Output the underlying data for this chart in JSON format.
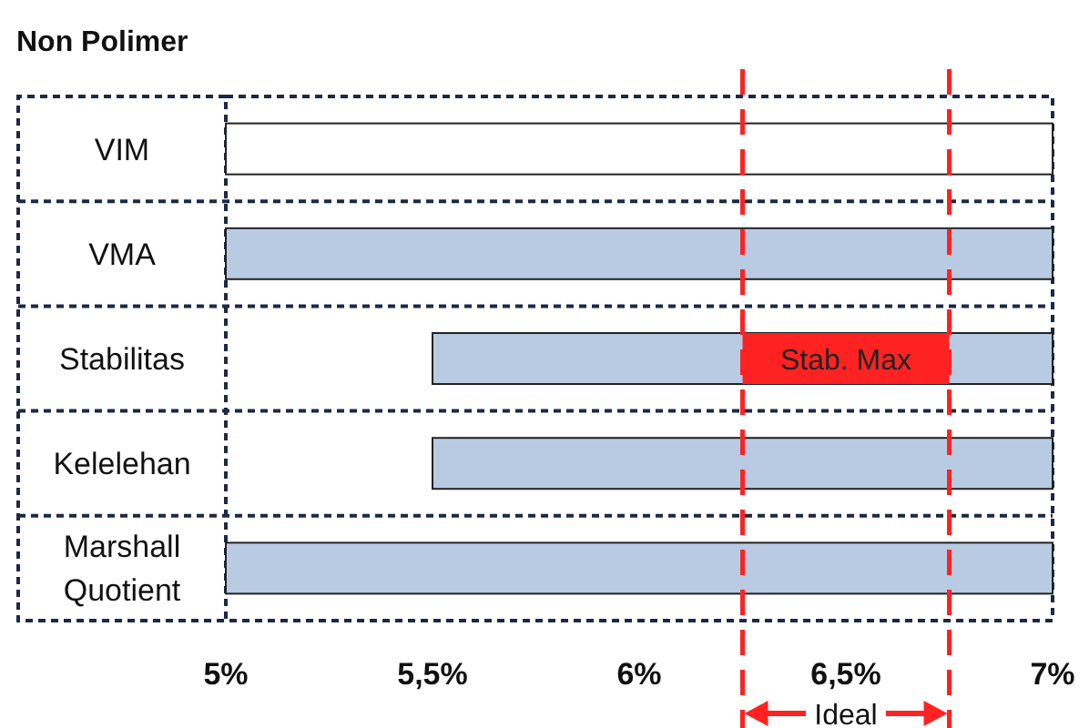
{
  "chart_data": {
    "type": "bar",
    "orientation": "horizontal",
    "title": "Non Polimer",
    "categories": [
      "VIM",
      "VMA",
      "Stabilitas",
      "Kelelehan",
      "Marshall\nQuotient"
    ],
    "xlim": [
      5,
      7
    ],
    "xticks": [
      {
        "value": 5,
        "label": "5%"
      },
      {
        "value": 5.5,
        "label": "5,5%"
      },
      {
        "value": 6,
        "label": "6%"
      },
      {
        "value": 6.5,
        "label": "6,5%"
      },
      {
        "value": 7,
        "label": "7%"
      }
    ],
    "series": [
      {
        "base": [
          5,
          5,
          5.5,
          5.5,
          5
        ],
        "values": [
          2,
          2,
          1.5,
          1.5,
          2
        ],
        "colors": [
          "#ffffff",
          "#b9cbe2",
          "#b9cbe2",
          "#b9cbe2",
          "#b9cbe2"
        ]
      },
      {
        "name": "Stab. Max",
        "color": "#ff2222",
        "base": [
          null,
          null,
          6.25,
          null,
          null
        ],
        "values": [
          null,
          null,
          0.5,
          null,
          null
        ]
      }
    ],
    "ref_lines": [
      {
        "axis": "x",
        "value": 6.25,
        "color": "#ff2222",
        "line_style": "dashed"
      },
      {
        "axis": "x",
        "value": 6.75,
        "color": "#ff2222",
        "line_style": "dashed"
      }
    ],
    "annotations": [
      "Ideal"
    ]
  }
}
